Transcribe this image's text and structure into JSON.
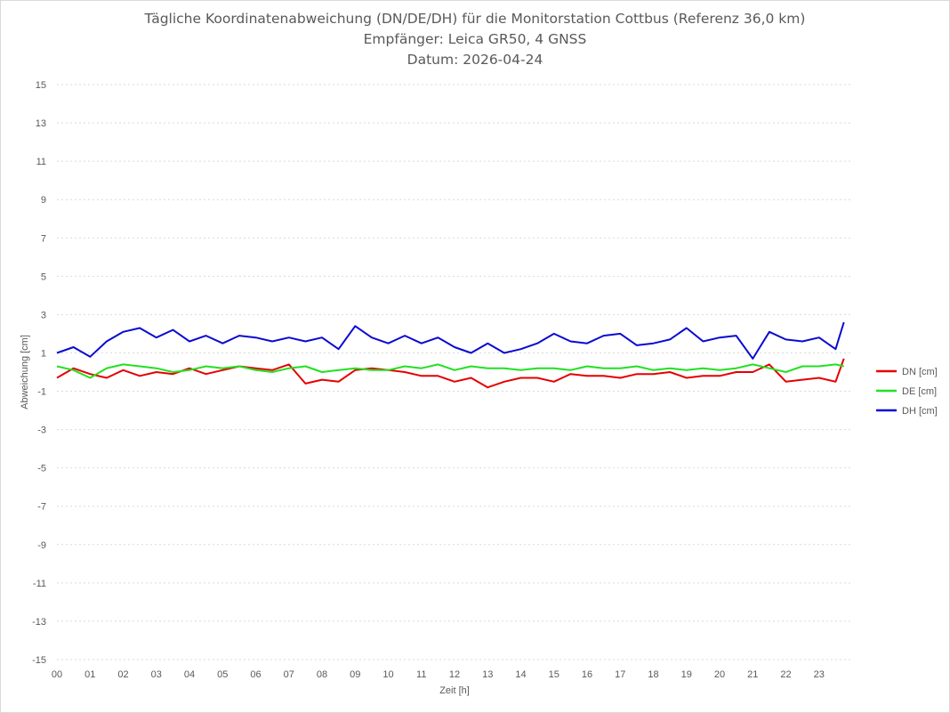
{
  "chart_data": {
    "type": "line",
    "title_lines": [
      "Tägliche Koordinatenabweichung (DN/DE/DH) für die Monitorstation Cottbus (Referenz 36,0 km)",
      "Empfänger: Leica GR50, 4 GNSS",
      "Datum: 2026-04-24"
    ],
    "xlabel": "Zeit [h]",
    "ylabel": "Abweichung [cm]",
    "xlim": [
      0,
      24
    ],
    "ylim": [
      -15,
      15
    ],
    "x_ticks": [
      "00",
      "01",
      "02",
      "03",
      "04",
      "05",
      "06",
      "07",
      "08",
      "09",
      "10",
      "11",
      "12",
      "13",
      "14",
      "15",
      "16",
      "17",
      "18",
      "19",
      "20",
      "21",
      "22",
      "23"
    ],
    "y_ticks": [
      15,
      13,
      11,
      9,
      7,
      5,
      3,
      1,
      -1,
      -3,
      -5,
      -7,
      -9,
      -11,
      -13,
      -15
    ],
    "grid": "horizontal-dotted",
    "legend_position": "right",
    "colors": {
      "DN": "#e60000",
      "DE": "#22e022",
      "DH": "#0a0ad2",
      "grid": "#d9d9d9",
      "axis_text": "#595959"
    },
    "series": [
      {
        "name": "DN [cm]",
        "color": "#e60000",
        "x": [
          0,
          0.5,
          1,
          1.5,
          2,
          2.5,
          3,
          3.5,
          4,
          4.5,
          5,
          5.5,
          6,
          6.5,
          7,
          7.5,
          8,
          8.5,
          9,
          9.5,
          10,
          10.5,
          11,
          11.5,
          12,
          12.5,
          13,
          13.5,
          14,
          14.5,
          15,
          15.5,
          16,
          16.5,
          17,
          17.5,
          18,
          18.5,
          19,
          19.5,
          20,
          20.5,
          21,
          21.5,
          22,
          22.5,
          23,
          23.5,
          23.75
        ],
        "y": [
          -0.3,
          0.2,
          -0.1,
          -0.3,
          0.1,
          -0.2,
          0.0,
          -0.1,
          0.2,
          -0.1,
          0.1,
          0.3,
          0.2,
          0.1,
          0.4,
          -0.6,
          -0.4,
          -0.5,
          0.1,
          0.2,
          0.1,
          0.0,
          -0.2,
          -0.2,
          -0.5,
          -0.3,
          -0.8,
          -0.5,
          -0.3,
          -0.3,
          -0.5,
          -0.1,
          -0.2,
          -0.2,
          -0.3,
          -0.1,
          -0.1,
          0.0,
          -0.3,
          -0.2,
          -0.2,
          0.0,
          0.0,
          0.4,
          -0.5,
          -0.4,
          -0.3,
          -0.5,
          0.7
        ]
      },
      {
        "name": "DE [cm]",
        "color": "#22e022",
        "x": [
          0,
          0.5,
          1,
          1.5,
          2,
          2.5,
          3,
          3.5,
          4,
          4.5,
          5,
          5.5,
          6,
          6.5,
          7,
          7.5,
          8,
          8.5,
          9,
          9.5,
          10,
          10.5,
          11,
          11.5,
          12,
          12.5,
          13,
          13.5,
          14,
          14.5,
          15,
          15.5,
          16,
          16.5,
          17,
          17.5,
          18,
          18.5,
          19,
          19.5,
          20,
          20.5,
          21,
          21.5,
          22,
          22.5,
          23,
          23.5,
          23.75
        ],
        "y": [
          0.3,
          0.1,
          -0.3,
          0.2,
          0.4,
          0.3,
          0.2,
          0.0,
          0.1,
          0.3,
          0.2,
          0.3,
          0.1,
          0.0,
          0.2,
          0.3,
          0.0,
          0.1,
          0.2,
          0.1,
          0.1,
          0.3,
          0.2,
          0.4,
          0.1,
          0.3,
          0.2,
          0.2,
          0.1,
          0.2,
          0.2,
          0.1,
          0.3,
          0.2,
          0.2,
          0.3,
          0.1,
          0.2,
          0.1,
          0.2,
          0.1,
          0.2,
          0.4,
          0.2,
          0.0,
          0.3,
          0.3,
          0.4,
          0.3
        ]
      },
      {
        "name": "DH [cm]",
        "color": "#0a0ad2",
        "x": [
          0,
          0.5,
          1,
          1.5,
          2,
          2.5,
          3,
          3.5,
          4,
          4.5,
          5,
          5.5,
          6,
          6.5,
          7,
          7.5,
          8,
          8.5,
          9,
          9.5,
          10,
          10.5,
          11,
          11.5,
          12,
          12.5,
          13,
          13.5,
          14,
          14.5,
          15,
          15.5,
          16,
          16.5,
          17,
          17.5,
          18,
          18.5,
          19,
          19.5,
          20,
          20.5,
          21,
          21.5,
          22,
          22.5,
          23,
          23.5,
          23.75
        ],
        "y": [
          1.0,
          1.3,
          0.8,
          1.6,
          2.1,
          2.3,
          1.8,
          2.2,
          1.6,
          1.9,
          1.5,
          1.9,
          1.8,
          1.6,
          1.8,
          1.6,
          1.8,
          1.2,
          2.4,
          1.8,
          1.5,
          1.9,
          1.5,
          1.8,
          1.3,
          1.0,
          1.5,
          1.0,
          1.2,
          1.5,
          2.0,
          1.6,
          1.5,
          1.9,
          2.0,
          1.4,
          1.5,
          1.7,
          2.3,
          1.6,
          1.8,
          1.9,
          0.7,
          2.1,
          1.7,
          1.6,
          1.8,
          1.2,
          2.6
        ]
      }
    ]
  }
}
